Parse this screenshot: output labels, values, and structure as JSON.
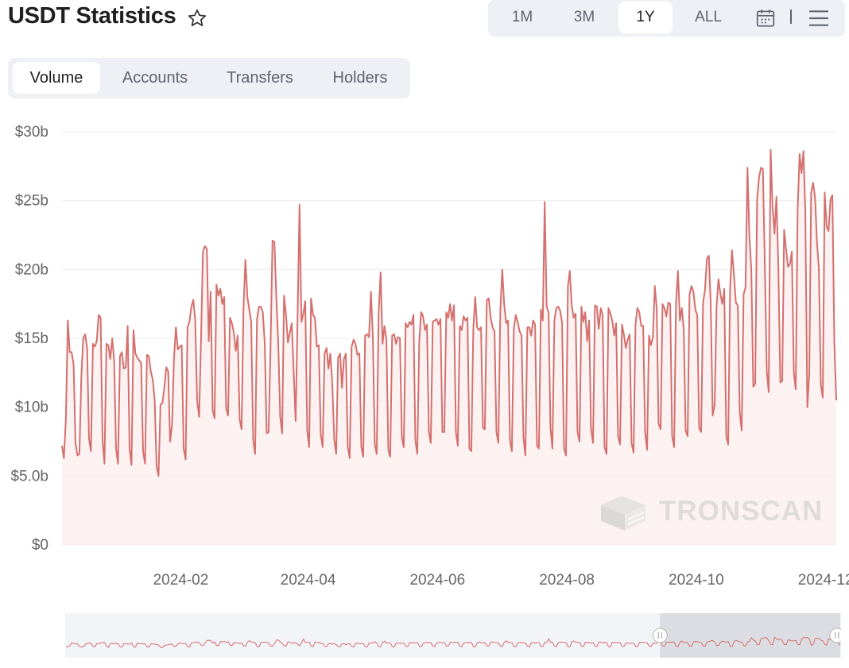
{
  "header": {
    "title": "USDT Statistics",
    "star_icon": "star-outline-icon"
  },
  "range_selector": {
    "options": [
      "1M",
      "3M",
      "1Y",
      "ALL"
    ],
    "active": "1Y",
    "calendar_icon": "calendar-icon",
    "menu_icon": "hamburger-menu-icon"
  },
  "tabs": {
    "items": [
      "Volume",
      "Accounts",
      "Transfers",
      "Holders"
    ],
    "active": "Volume"
  },
  "watermark": "TRONSCAN",
  "colors": {
    "line": "#d4706e",
    "area": "#fbeeee",
    "grid": "#ececec",
    "axis_text": "#666666"
  },
  "chart_data": {
    "type": "area",
    "title": "",
    "xlabel": "",
    "ylabel": "",
    "x_range": [
      "2023-12-07",
      "2024-12-06"
    ],
    "ylim": [
      0,
      30
    ],
    "y_unit": "billion USD",
    "y_ticks": [
      "$0",
      "$5.0b",
      "$10b",
      "$15b",
      "$20b",
      "$25b",
      "$30b"
    ],
    "x_ticks": [
      "2024-02",
      "2024-04",
      "2024-06",
      "2024-08",
      "2024-10",
      "2024-12"
    ],
    "grid": true,
    "navigator_range": [
      "2024-09-12",
      "2024-12-06"
    ],
    "series": [
      {
        "values": [
          7.2,
          6.3,
          9.2,
          16.3,
          14.0,
          14.0,
          13.1,
          7.4,
          6.5,
          6.6,
          12.2,
          15.0,
          15.3,
          14.3,
          7.7,
          6.8,
          14.6,
          14.4,
          14.8,
          16.7,
          16.5,
          7.6,
          5.9,
          14.6,
          14.5,
          13.5,
          15.0,
          13.4,
          7.0,
          5.9,
          13.7,
          14.0,
          12.8,
          12.9,
          15.9,
          7.0,
          5.8,
          15.6,
          13.9,
          13.6,
          13.4,
          13.2,
          6.8,
          5.9,
          13.8,
          13.7,
          12.6,
          12.0,
          10.5,
          5.7,
          5.0,
          10.2,
          10.3,
          11.4,
          12.9,
          12.6,
          7.5,
          8.7,
          13.6,
          15.8,
          14.2,
          14.4,
          14.5,
          7.0,
          6.2,
          15.8,
          16.2,
          17.3,
          17.8,
          16.3,
          10.5,
          9.3,
          15.0,
          21.3,
          21.7,
          21.5,
          14.8,
          18.4,
          9.8,
          9.2,
          18.9,
          18.1,
          18.6,
          17.5,
          18.0,
          9.9,
          9.4,
          16.5,
          16.1,
          15.4,
          14.1,
          15.2,
          9.1,
          8.4,
          17.2,
          20.7,
          18.0,
          17.1,
          16.2,
          7.6,
          6.6,
          16.4,
          17.3,
          17.3,
          16.9,
          14.7,
          8.1,
          8.2,
          14.3,
          22.1,
          22.0,
          18.0,
          14.7,
          9.3,
          8.1,
          18.1,
          16.7,
          14.7,
          15.4,
          16.1,
          12.5,
          9.0,
          16.4,
          24.7,
          16.2,
          16.8,
          17.7,
          8.3,
          7.1,
          17.9,
          16.7,
          16.5,
          14.4,
          14.5,
          8.0,
          7.1,
          13.9,
          14.3,
          12.8,
          13.9,
          11.7,
          7.6,
          6.6,
          13.6,
          13.9,
          11.4,
          13.5,
          13.9,
          7.1,
          6.3,
          14.4,
          14.9,
          14.6,
          13.8,
          13.9,
          7.1,
          6.4,
          15.2,
          15.3,
          15.1,
          18.4,
          15.0,
          7.3,
          6.6,
          16.8,
          19.8,
          14.6,
          15.9,
          14.9,
          6.9,
          6.4,
          15.2,
          15.3,
          14.6,
          15.1,
          15.0,
          7.8,
          7.1,
          16.1,
          15.8,
          16.2,
          16.0,
          16.7,
          7.6,
          6.6,
          14.8,
          16.9,
          16.6,
          15.6,
          16.0,
          8.2,
          7.4,
          16.2,
          16.3,
          16.4,
          16.0,
          16.4,
          8.2,
          8.2,
          16.9,
          16.5,
          17.5,
          16.3,
          17.4,
          8.2,
          7.2,
          15.9,
          15.6,
          16.6,
          16.3,
          16.5,
          7.0,
          6.8,
          15.7,
          18.0,
          15.8,
          15.6,
          15.8,
          8.5,
          8.4,
          17.8,
          17.9,
          16.5,
          15.8,
          15.5,
          8.2,
          7.4,
          17.0,
          20.0,
          17.5,
          16.1,
          16.3,
          7.6,
          6.8,
          15.7,
          16.7,
          16.2,
          15.5,
          15.2,
          7.8,
          6.5,
          15.8,
          15.8,
          15.2,
          16.3,
          16.0,
          7.2,
          7.0,
          17.1,
          16.3,
          24.9,
          17.3,
          16.9,
          8.5,
          7.0,
          16.3,
          17.2,
          17.3,
          17.0,
          16.1,
          7.0,
          6.5,
          18.8,
          19.9,
          17.4,
          16.5,
          16.8,
          8.2,
          7.5,
          17.3,
          16.2,
          16.9,
          14.8,
          16.3,
          8.4,
          7.4,
          17.4,
          17.3,
          15.7,
          17.2,
          16.7,
          7.1,
          6.6,
          17.2,
          16.8,
          16.3,
          15.2,
          16.1,
          7.9,
          7.3,
          16.0,
          15.3,
          14.3,
          14.9,
          15.3,
          7.4,
          6.7,
          16.0,
          17.2,
          16.9,
          15.9,
          15.9,
          8.2,
          6.9,
          15.2,
          14.5,
          15.1,
          18.8,
          17.2,
          8.8,
          8.4,
          17.5,
          17.2,
          16.6,
          17.6,
          17.5,
          7.9,
          7.1,
          17.6,
          19.9,
          16.3,
          17.2,
          15.7,
          8.3,
          7.9,
          18.2,
          18.8,
          18.4,
          17.1,
          16.7,
          8.5,
          8.2,
          17.6,
          18.5,
          20.8,
          21.0,
          17.4,
          9.4,
          10.2,
          17.3,
          19.3,
          18.2,
          17.5,
          18.6,
          7.9,
          7.3,
          18.6,
          21.4,
          19.6,
          17.6,
          17.4,
          9.6,
          8.3,
          18.2,
          18.7,
          27.4,
          22.4,
          20.0,
          11.5,
          11.7,
          25.1,
          26.7,
          27.4,
          27.3,
          20.4,
          12.6,
          11.1,
          28.7,
          24.6,
          22.6,
          25.3,
          20.3,
          11.8,
          11.9,
          22.9,
          21.5,
          20.2,
          20.4,
          21.3,
          12.5,
          11.3,
          24.4,
          28.4,
          27.0,
          28.6,
          24.1,
          10.0,
          12.4,
          25.6,
          26.3,
          25.2,
          22.0,
          20.1,
          11.6,
          10.7,
          25.6,
          23.1,
          22.8,
          25.1,
          25.4,
          14.6,
          10.5
        ]
      }
    ]
  }
}
